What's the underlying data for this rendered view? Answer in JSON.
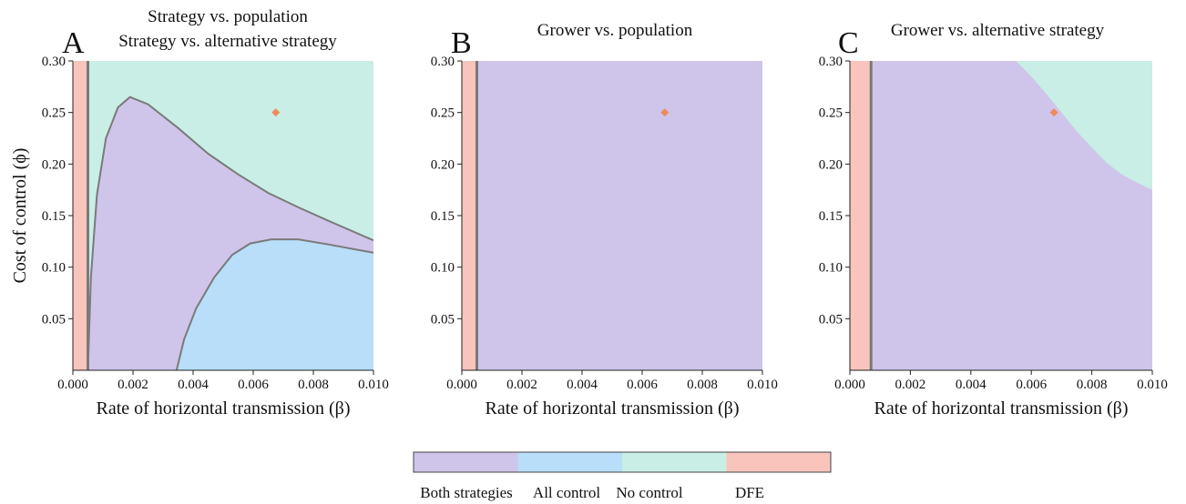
{
  "colors": {
    "both_strategies": "#cfc5ea",
    "all_control": "#b8def9",
    "no_control": "#c9eee6",
    "dfe": "#f8c4bc",
    "boundary": "#7a7a7a",
    "marker": "#f08a5a"
  },
  "chart_data": [
    {
      "type": "heatmap",
      "panel": "A",
      "title_lines": [
        "Strategy vs. population",
        "Strategy vs. alternative strategy"
      ],
      "xlabel": "Rate of horizontal transmission (β)",
      "ylabel": "Cost of control (ϕ)",
      "xlim": [
        0,
        0.01
      ],
      "ylim": [
        0,
        0.3
      ],
      "xticks": [
        "0.000",
        "0.002",
        "0.004",
        "0.006",
        "0.008",
        "0.010"
      ],
      "yticks": [
        "0.05",
        "0.10",
        "0.15",
        "0.20",
        "0.25",
        "0.30"
      ],
      "regions": [
        "DFE",
        "No control",
        "Both strategies",
        "All control"
      ],
      "boundaries": {
        "dfe_edge_beta": 0.0005,
        "no_control_boundary": [
          [
            0.0005,
            0.0
          ],
          [
            0.0006,
            0.09
          ],
          [
            0.0008,
            0.17
          ],
          [
            0.0011,
            0.225
          ],
          [
            0.0015,
            0.255
          ],
          [
            0.0019,
            0.265
          ],
          [
            0.0025,
            0.258
          ],
          [
            0.0035,
            0.235
          ],
          [
            0.0045,
            0.21
          ],
          [
            0.0055,
            0.19
          ],
          [
            0.0065,
            0.172
          ],
          [
            0.0075,
            0.158
          ],
          [
            0.0085,
            0.145
          ],
          [
            0.01,
            0.126
          ]
        ],
        "all_control_boundary": [
          [
            0.00345,
            0.0
          ],
          [
            0.0037,
            0.03
          ],
          [
            0.0041,
            0.06
          ],
          [
            0.0047,
            0.09
          ],
          [
            0.0053,
            0.112
          ],
          [
            0.0059,
            0.123
          ],
          [
            0.0066,
            0.127
          ],
          [
            0.0075,
            0.127
          ],
          [
            0.0085,
            0.122
          ],
          [
            0.01,
            0.114
          ]
        ]
      },
      "marker": {
        "beta": 0.00675,
        "phi": 0.25
      }
    },
    {
      "type": "heatmap",
      "panel": "B",
      "title_lines": [
        "Grower vs. population"
      ],
      "xlabel": "Rate of horizontal transmission (β)",
      "ylabel": "",
      "xlim": [
        0,
        0.01
      ],
      "ylim": [
        0,
        0.3
      ],
      "xticks": [
        "0.000",
        "0.002",
        "0.004",
        "0.006",
        "0.008",
        "0.010"
      ],
      "yticks": [
        "0.05",
        "0.10",
        "0.15",
        "0.20",
        "0.25",
        "0.30"
      ],
      "regions": [
        "DFE",
        "Both strategies"
      ],
      "boundaries": {
        "dfe_edge_beta": 0.0005
      },
      "marker": {
        "beta": 0.00675,
        "phi": 0.25
      }
    },
    {
      "type": "heatmap",
      "panel": "C",
      "title_lines": [
        "Grower vs. alternative strategy"
      ],
      "xlabel": "Rate of horizontal transmission (β)",
      "ylabel": "",
      "xlim": [
        0,
        0.01
      ],
      "ylim": [
        0,
        0.3
      ],
      "xticks": [
        "0.000",
        "0.002",
        "0.004",
        "0.006",
        "0.008",
        "0.010"
      ],
      "yticks": [
        "0.05",
        "0.10",
        "0.15",
        "0.20",
        "0.25",
        "0.30"
      ],
      "regions": [
        "DFE",
        "Both strategies",
        "No control"
      ],
      "boundaries": {
        "dfe_edge_beta": 0.0007,
        "no_control_boundary": [
          [
            0.0055,
            0.3
          ],
          [
            0.006,
            0.285
          ],
          [
            0.0065,
            0.268
          ],
          [
            0.007,
            0.25
          ],
          [
            0.0075,
            0.232
          ],
          [
            0.008,
            0.216
          ],
          [
            0.0085,
            0.201
          ],
          [
            0.009,
            0.19
          ],
          [
            0.0095,
            0.182
          ],
          [
            0.01,
            0.175
          ]
        ]
      },
      "marker": {
        "beta": 0.00675,
        "phi": 0.25
      }
    }
  ],
  "legend": {
    "items": [
      {
        "label": "Both strategies",
        "key": "both_strategies"
      },
      {
        "label": "All control",
        "key": "all_control"
      },
      {
        "label": "No control",
        "key": "no_control"
      },
      {
        "label": "DFE",
        "key": "dfe"
      }
    ]
  }
}
